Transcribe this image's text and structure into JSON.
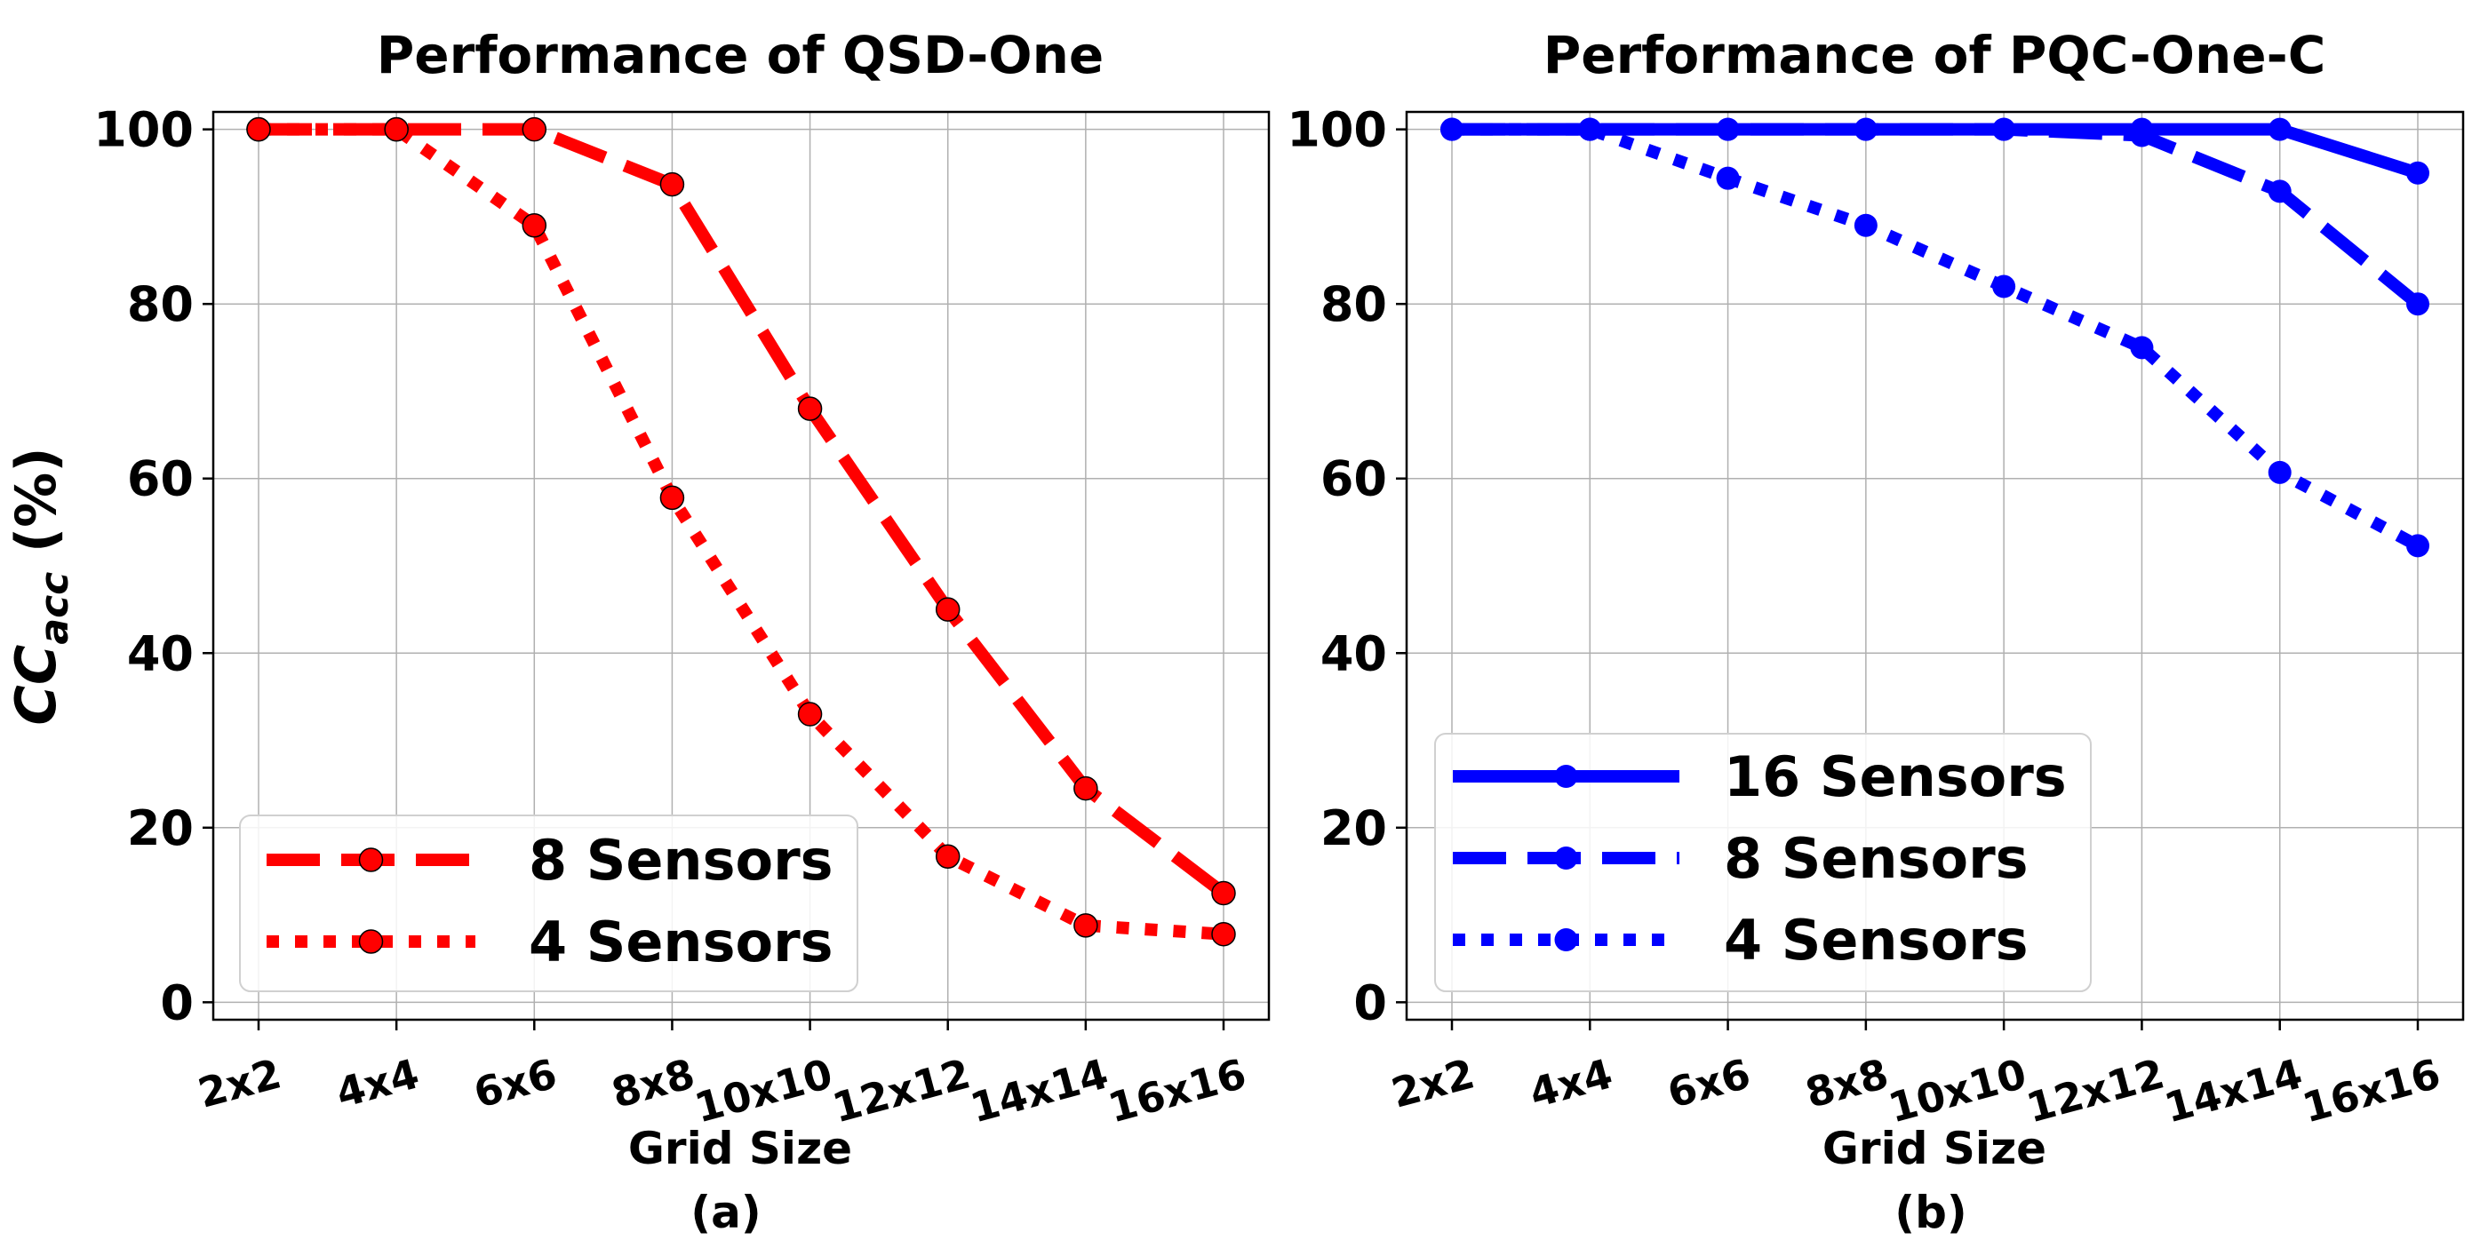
{
  "chart_data": [
    {
      "type": "line",
      "title": "Performance of QSD-One",
      "xlabel": "Grid Size",
      "ylabel": "CC",
      "ylabel_sub": "acc",
      "ylabel_suffix": " (%)",
      "panel_label": "(a)",
      "categories": [
        "2x2",
        "4x4",
        "6x6",
        "8x8",
        "10x10",
        "12x12",
        "14x14",
        "16x16"
      ],
      "yticks": [
        0,
        20,
        40,
        60,
        80,
        100
      ],
      "ylim": [
        -2,
        102
      ],
      "grid": true,
      "legend_position": "lower-left",
      "color": "#ff0000",
      "series": [
        {
          "name": "8 Sensors",
          "style": "dashed",
          "values": [
            100,
            100,
            100,
            93.7,
            68,
            45,
            24.5,
            12.5
          ]
        },
        {
          "name": "4 Sensors",
          "style": "dotted",
          "values": [
            100,
            100,
            89,
            57.8,
            33,
            16.7,
            8.8,
            7.8
          ]
        }
      ]
    },
    {
      "type": "line",
      "title": "Performance of PQC-One-C",
      "xlabel": "Grid Size",
      "panel_label": "(b)",
      "categories": [
        "2x2",
        "4x4",
        "6x6",
        "8x8",
        "10x10",
        "12x12",
        "14x14",
        "16x16"
      ],
      "yticks": [
        0,
        20,
        40,
        60,
        80,
        100
      ],
      "ylim": [
        -2,
        102
      ],
      "grid": true,
      "legend_position": "lower-left",
      "color": "#0000ff",
      "series": [
        {
          "name": "16 Sensors",
          "style": "solid",
          "values": [
            100,
            100,
            100,
            100,
            100,
            100,
            100,
            95
          ]
        },
        {
          "name": "8 Sensors",
          "style": "dashed",
          "values": [
            100,
            100,
            100,
            100,
            100,
            99.3,
            92.9,
            80
          ]
        },
        {
          "name": "4 Sensors",
          "style": "dotted",
          "values": [
            100,
            100,
            94.4,
            89,
            82,
            75,
            60.7,
            52.3
          ]
        }
      ]
    }
  ]
}
